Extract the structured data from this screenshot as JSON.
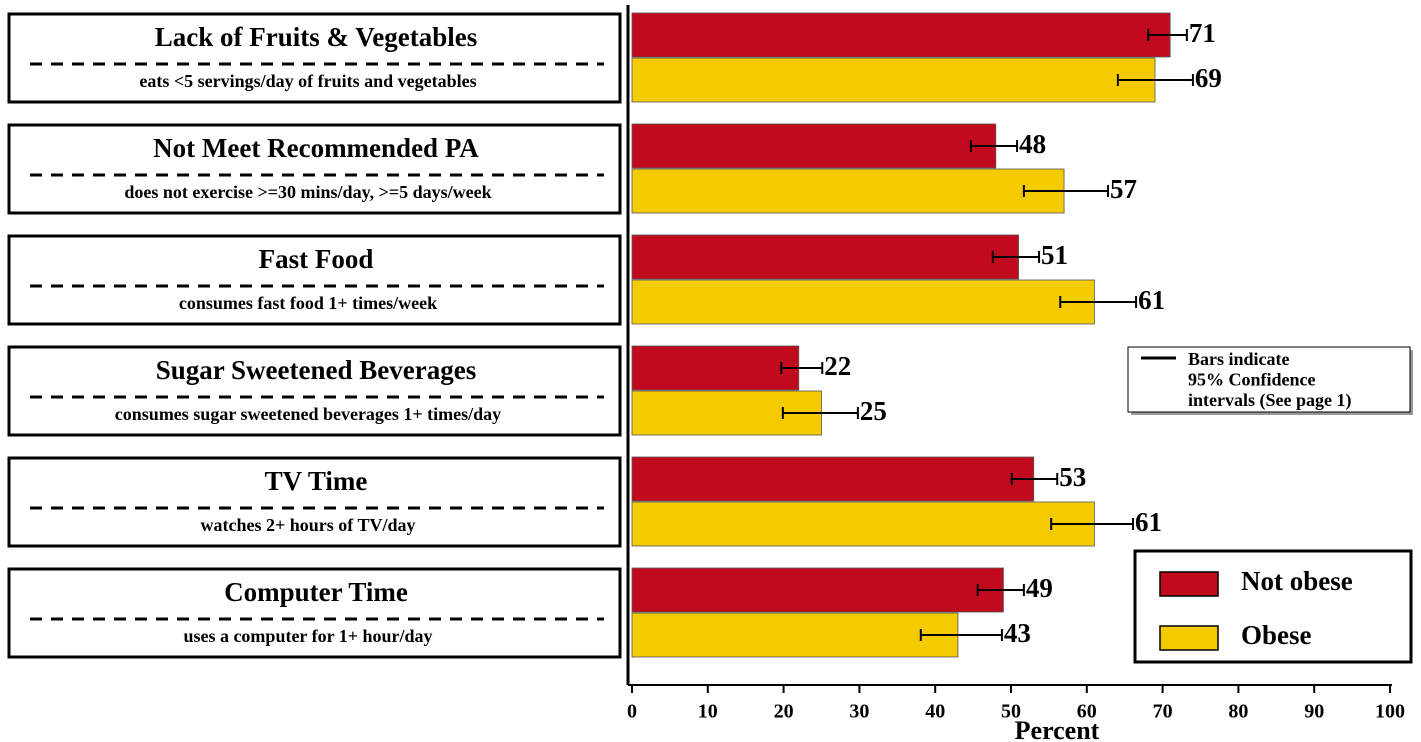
{
  "chart_data": {
    "type": "bar",
    "orientation": "horizontal",
    "categories": [
      "Lack of Fruits & Vegetables",
      "Not Meet Recommended PA",
      "Fast Food",
      "Sugar Sweetened Beverages",
      "TV Time",
      "Computer Time"
    ],
    "category_descriptions": [
      "eats <5 servings/day of fruits and vegetables",
      "does not exercise >=30 mins/day, >=5 days/week",
      "consumes fast food 1+ times/week",
      "consumes sugar sweetened beverages 1+ times/day",
      "watches 2+ hours of TV/day",
      "uses a computer for 1+ hour/day"
    ],
    "series": [
      {
        "name": "Not obese",
        "color": "#c20a1f",
        "values": [
          71,
          48,
          51,
          22,
          53,
          49
        ],
        "ci_low": [
          68.1,
          44.7,
          47.6,
          19.7,
          50.1,
          45.6
        ],
        "ci_high": [
          73.2,
          50.8,
          53.7,
          25.1,
          56.1,
          51.7
        ]
      },
      {
        "name": "Obese",
        "color": "#f4cb00",
        "values": [
          69,
          57,
          61,
          25,
          61,
          43
        ],
        "ci_low": [
          64.1,
          51.7,
          56.5,
          19.9,
          55.3,
          38.1
        ],
        "ci_high": [
          74.0,
          62.8,
          66.5,
          29.8,
          66.1,
          48.8
        ]
      }
    ],
    "xlabel": "Percent",
    "xlim": [
      0,
      100
    ],
    "xticks": [
      0,
      10,
      20,
      30,
      40,
      50,
      60,
      70,
      80,
      90,
      100
    ],
    "note": [
      "Bars indicate",
      "95% Confidence",
      "intervals (See page 1)"
    ],
    "legend_position": "lower right"
  }
}
